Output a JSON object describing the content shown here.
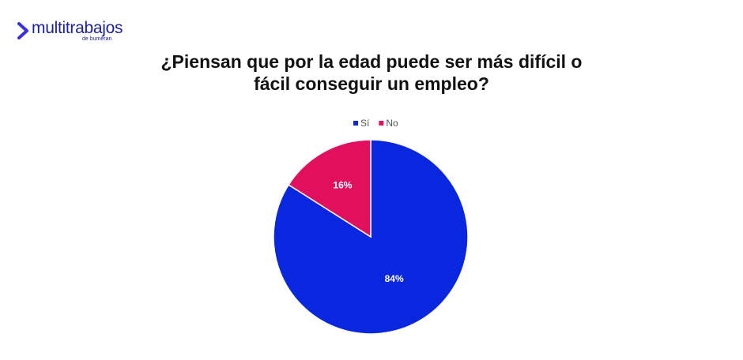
{
  "logo": {
    "name": "multitrabajos",
    "tagline": "de bumeran"
  },
  "chart_data": {
    "type": "pie",
    "title": "¿Piensan que por la edad puede ser más difícil o fácil conseguir un empleo?",
    "categories": [
      "Sí",
      "No"
    ],
    "values": [
      84,
      16
    ],
    "value_labels": [
      "84%",
      "16%"
    ],
    "colors": [
      "#0a27e0",
      "#e20f5f"
    ],
    "legend": "top"
  }
}
